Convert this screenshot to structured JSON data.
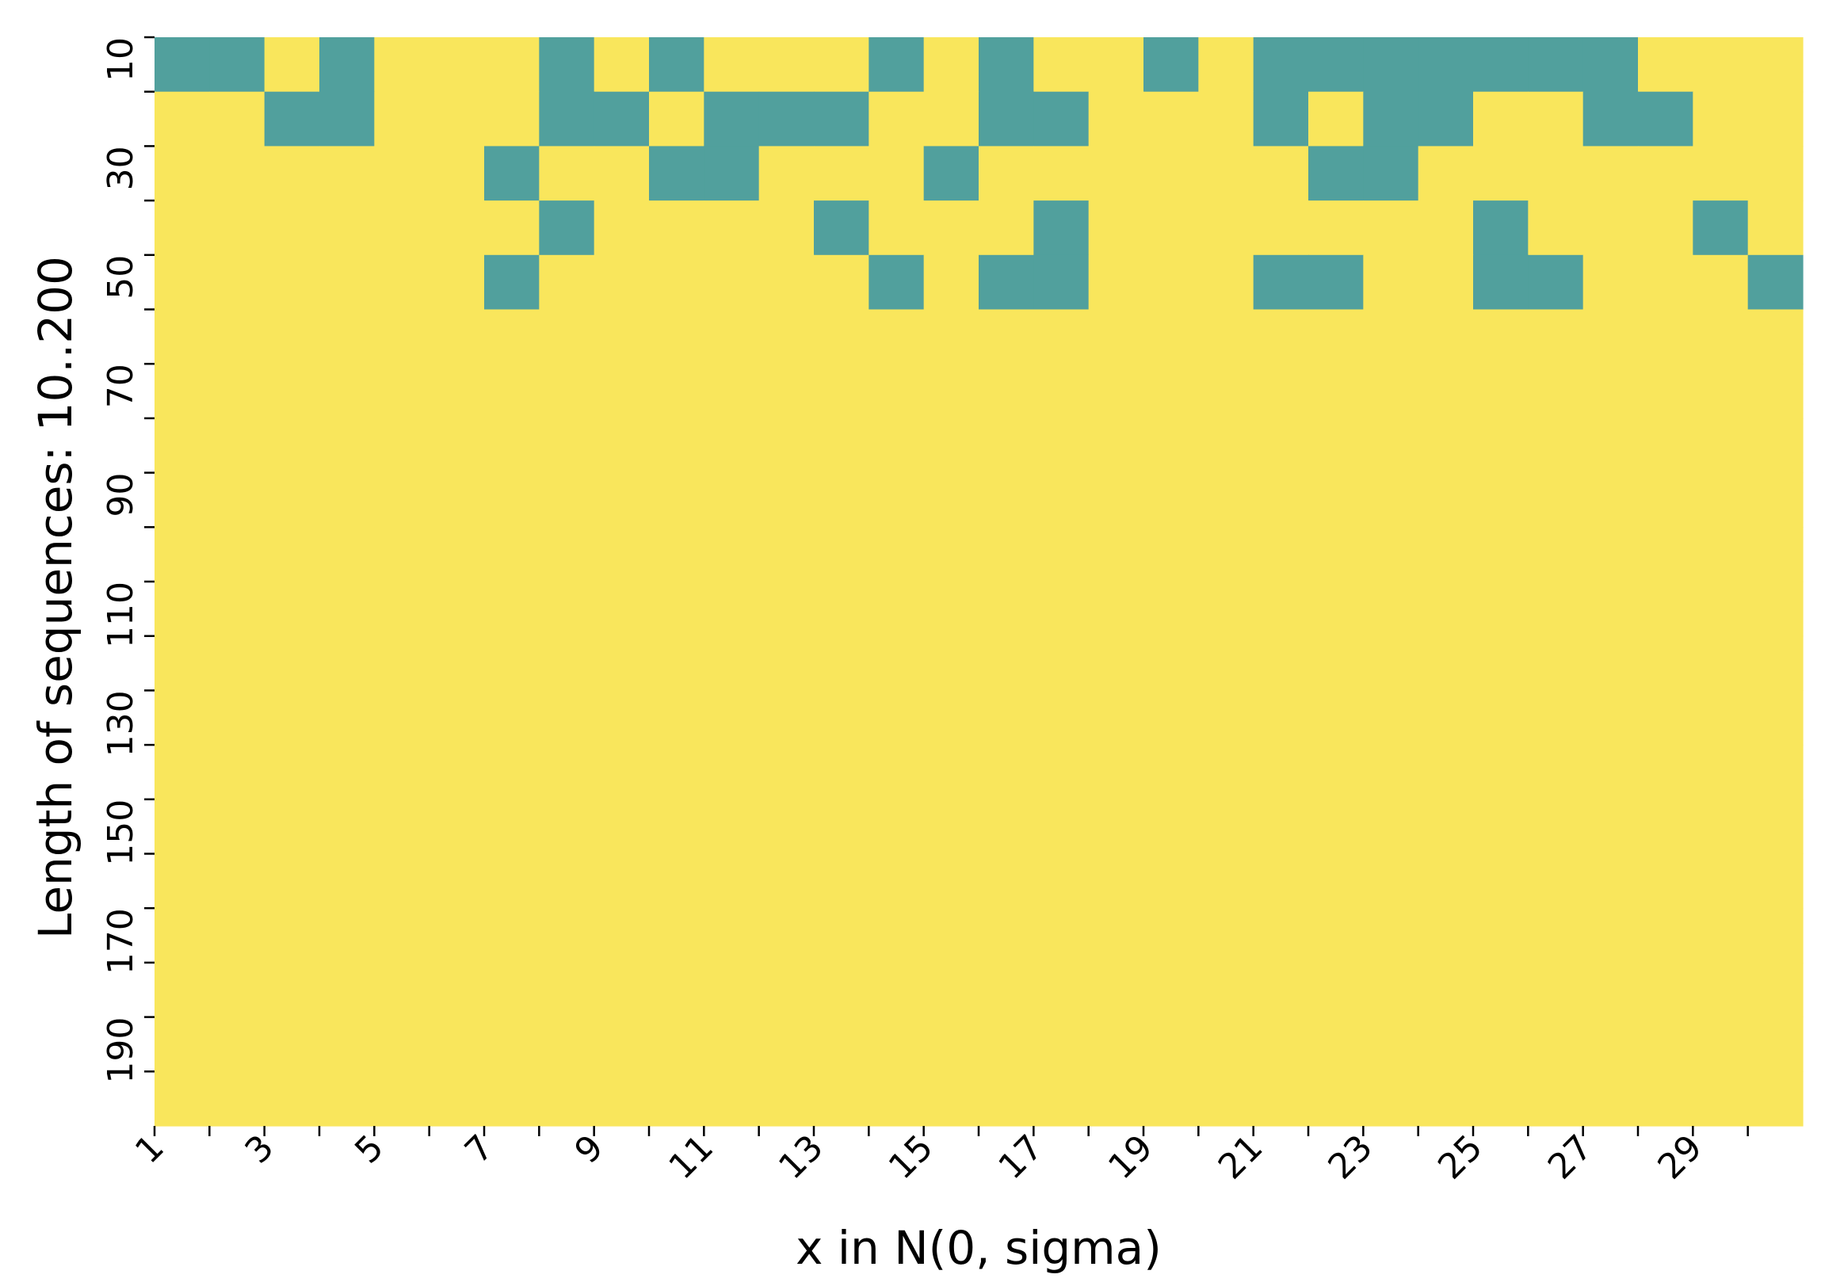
{
  "chart_data": {
    "type": "heatmap",
    "xlabel": "x in N(0, sigma)",
    "ylabel": "Length of sequences: 10..200",
    "x": [
      1,
      2,
      3,
      4,
      5,
      6,
      7,
      8,
      9,
      10,
      11,
      12,
      13,
      14,
      15,
      16,
      17,
      18,
      19,
      20,
      21,
      22,
      23,
      24,
      25,
      26,
      27,
      28,
      29,
      30
    ],
    "y": [
      10,
      20,
      30,
      40,
      50,
      60,
      70,
      80,
      90,
      100,
      110,
      120,
      130,
      140,
      150,
      160,
      170,
      180,
      190,
      200
    ],
    "x_tick_labels": [
      "1",
      "3",
      "5",
      "7",
      "9",
      "11",
      "13",
      "15",
      "17",
      "19",
      "21",
      "23",
      "25",
      "27",
      "29"
    ],
    "y_tick_labels": [
      "10",
      "30",
      "50",
      "70",
      "90",
      "110",
      "130",
      "150",
      "170",
      "190"
    ],
    "colors": {
      "0": "#51a09d",
      "1": "#f9e65c"
    },
    "legend": "none",
    "grid": false,
    "values": [
      [
        0,
        0,
        1,
        0,
        1,
        1,
        1,
        0,
        1,
        0,
        1,
        1,
        1,
        0,
        1,
        0,
        1,
        1,
        0,
        1,
        0,
        0,
        0,
        0,
        0,
        0,
        0,
        1,
        1,
        1
      ],
      [
        1,
        1,
        0,
        0,
        1,
        1,
        1,
        0,
        0,
        1,
        0,
        0,
        0,
        1,
        1,
        0,
        0,
        1,
        1,
        1,
        0,
        1,
        0,
        0,
        1,
        1,
        0,
        0,
        1,
        1
      ],
      [
        1,
        1,
        1,
        1,
        1,
        1,
        0,
        1,
        1,
        0,
        0,
        1,
        1,
        1,
        0,
        1,
        1,
        1,
        1,
        1,
        1,
        0,
        0,
        1,
        1,
        1,
        1,
        1,
        1,
        1
      ],
      [
        1,
        1,
        1,
        1,
        1,
        1,
        1,
        0,
        1,
        1,
        1,
        1,
        0,
        1,
        1,
        1,
        0,
        1,
        1,
        1,
        1,
        1,
        1,
        1,
        0,
        1,
        1,
        1,
        0,
        1
      ],
      [
        1,
        1,
        1,
        1,
        1,
        1,
        0,
        1,
        1,
        1,
        1,
        1,
        1,
        0,
        1,
        0,
        0,
        1,
        1,
        1,
        0,
        0,
        1,
        1,
        0,
        0,
        1,
        1,
        1,
        0
      ],
      [
        1,
        1,
        1,
        1,
        1,
        1,
        1,
        1,
        1,
        1,
        1,
        1,
        1,
        1,
        1,
        1,
        1,
        1,
        1,
        1,
        1,
        1,
        1,
        1,
        1,
        1,
        1,
        1,
        1,
        1
      ],
      [
        1,
        1,
        1,
        1,
        1,
        1,
        1,
        1,
        1,
        1,
        1,
        1,
        1,
        1,
        1,
        1,
        1,
        1,
        1,
        1,
        1,
        1,
        1,
        1,
        1,
        1,
        1,
        1,
        1,
        1
      ],
      [
        1,
        1,
        1,
        1,
        1,
        1,
        1,
        1,
        1,
        1,
        1,
        1,
        1,
        1,
        1,
        1,
        1,
        1,
        1,
        1,
        1,
        1,
        1,
        1,
        1,
        1,
        1,
        1,
        1,
        1
      ],
      [
        1,
        1,
        1,
        1,
        1,
        1,
        1,
        1,
        1,
        1,
        1,
        1,
        1,
        1,
        1,
        1,
        1,
        1,
        1,
        1,
        1,
        1,
        1,
        1,
        1,
        1,
        1,
        1,
        1,
        1
      ],
      [
        1,
        1,
        1,
        1,
        1,
        1,
        1,
        1,
        1,
        1,
        1,
        1,
        1,
        1,
        1,
        1,
        1,
        1,
        1,
        1,
        1,
        1,
        1,
        1,
        1,
        1,
        1,
        1,
        1,
        1
      ],
      [
        1,
        1,
        1,
        1,
        1,
        1,
        1,
        1,
        1,
        1,
        1,
        1,
        1,
        1,
        1,
        1,
        1,
        1,
        1,
        1,
        1,
        1,
        1,
        1,
        1,
        1,
        1,
        1,
        1,
        1
      ],
      [
        1,
        1,
        1,
        1,
        1,
        1,
        1,
        1,
        1,
        1,
        1,
        1,
        1,
        1,
        1,
        1,
        1,
        1,
        1,
        1,
        1,
        1,
        1,
        1,
        1,
        1,
        1,
        1,
        1,
        1
      ],
      [
        1,
        1,
        1,
        1,
        1,
        1,
        1,
        1,
        1,
        1,
        1,
        1,
        1,
        1,
        1,
        1,
        1,
        1,
        1,
        1,
        1,
        1,
        1,
        1,
        1,
        1,
        1,
        1,
        1,
        1
      ],
      [
        1,
        1,
        1,
        1,
        1,
        1,
        1,
        1,
        1,
        1,
        1,
        1,
        1,
        1,
        1,
        1,
        1,
        1,
        1,
        1,
        1,
        1,
        1,
        1,
        1,
        1,
        1,
        1,
        1,
        1
      ],
      [
        1,
        1,
        1,
        1,
        1,
        1,
        1,
        1,
        1,
        1,
        1,
        1,
        1,
        1,
        1,
        1,
        1,
        1,
        1,
        1,
        1,
        1,
        1,
        1,
        1,
        1,
        1,
        1,
        1,
        1
      ],
      [
        1,
        1,
        1,
        1,
        1,
        1,
        1,
        1,
        1,
        1,
        1,
        1,
        1,
        1,
        1,
        1,
        1,
        1,
        1,
        1,
        1,
        1,
        1,
        1,
        1,
        1,
        1,
        1,
        1,
        1
      ],
      [
        1,
        1,
        1,
        1,
        1,
        1,
        1,
        1,
        1,
        1,
        1,
        1,
        1,
        1,
        1,
        1,
        1,
        1,
        1,
        1,
        1,
        1,
        1,
        1,
        1,
        1,
        1,
        1,
        1,
        1
      ],
      [
        1,
        1,
        1,
        1,
        1,
        1,
        1,
        1,
        1,
        1,
        1,
        1,
        1,
        1,
        1,
        1,
        1,
        1,
        1,
        1,
        1,
        1,
        1,
        1,
        1,
        1,
        1,
        1,
        1,
        1
      ],
      [
        1,
        1,
        1,
        1,
        1,
        1,
        1,
        1,
        1,
        1,
        1,
        1,
        1,
        1,
        1,
        1,
        1,
        1,
        1,
        1,
        1,
        1,
        1,
        1,
        1,
        1,
        1,
        1,
        1,
        1
      ],
      [
        1,
        1,
        1,
        1,
        1,
        1,
        1,
        1,
        1,
        1,
        1,
        1,
        1,
        1,
        1,
        1,
        1,
        1,
        1,
        1,
        1,
        1,
        1,
        1,
        1,
        1,
        1,
        1,
        1,
        1
      ]
    ]
  }
}
